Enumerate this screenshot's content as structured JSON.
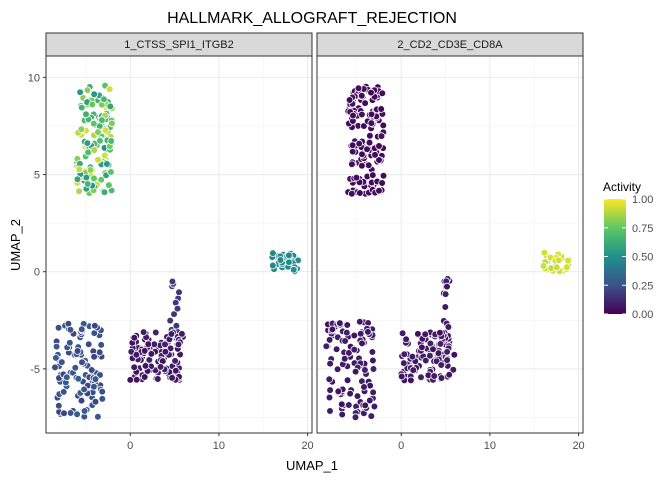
{
  "chart_data": {
    "type": "scatter",
    "title": "HALLMARK_ALLOGRAFT_REJECTION",
    "xlabel": "UMAP_1",
    "ylabel": "UMAP_2",
    "xlim": [
      -9.5,
      20.5
    ],
    "ylim": [
      -8.3,
      11.1
    ],
    "x_ticks": [
      0,
      10,
      20
    ],
    "x_tick_labels": [
      "0",
      "10",
      "20"
    ],
    "y_ticks": [
      -5,
      0,
      5,
      10
    ],
    "y_tick_labels": [
      "-5",
      "0",
      "5",
      "10"
    ],
    "grid": true,
    "legend": {
      "title": "Activity",
      "position": "right",
      "type": "colorbar",
      "ticks": [
        0,
        0.25,
        0.5,
        0.75,
        1.0
      ],
      "tick_labels": [
        "0.00",
        "0.25",
        "0.50",
        "0.75",
        "1.00"
      ],
      "colormap": "viridis",
      "colors": [
        "#440154",
        "#3b528b",
        "#21908c",
        "#5dc863",
        "#fde725"
      ]
    },
    "panels": [
      {
        "label": "1_CTSS_SPI1_ITGB2",
        "clusters": [
          {
            "x": [
              -6,
              -2
            ],
            "y": [
              4,
              9.6
            ],
            "activity": [
              0.5,
              0.95
            ],
            "n": 150
          },
          {
            "x": [
              16,
              19
            ],
            "y": [
              0,
              1
            ],
            "activity": [
              0.45,
              0.5
            ],
            "n": 30
          },
          {
            "x": [
              4.5,
              5.5
            ],
            "y": [
              -3.5,
              -0.3
            ],
            "activity": [
              0.15,
              0.2
            ],
            "n": 15
          },
          {
            "x": [
              0,
              6
            ],
            "y": [
              -5.6,
              -3.1
            ],
            "activity": [
              0.05,
              0.1
            ],
            "n": 110
          },
          {
            "x": [
              -8.5,
              -3
            ],
            "y": [
              -7.5,
              -2.5
            ],
            "activity": [
              0.2,
              0.3
            ],
            "n": 110
          }
        ]
      },
      {
        "label": "2_CD2_CD3E_CD8A",
        "clusters": [
          {
            "x": [
              -6,
              -2
            ],
            "y": [
              4,
              9.6
            ],
            "activity": [
              0.02,
              0.05
            ],
            "n": 150
          },
          {
            "x": [
              16,
              19
            ],
            "y": [
              0,
              1
            ],
            "activity": [
              0.9,
              0.95
            ],
            "n": 30
          },
          {
            "x": [
              4.5,
              5.5
            ],
            "y": [
              -3.5,
              -0.3
            ],
            "activity": [
              0.05,
              0.1
            ],
            "n": 15
          },
          {
            "x": [
              0,
              6
            ],
            "y": [
              -5.6,
              -3.1
            ],
            "activity": [
              0.05,
              0.1
            ],
            "n": 110
          },
          {
            "x": [
              -8.5,
              -3
            ],
            "y": [
              -7.5,
              -2.5
            ],
            "activity": [
              0.05,
              0.1
            ],
            "n": 110
          }
        ]
      }
    ]
  }
}
